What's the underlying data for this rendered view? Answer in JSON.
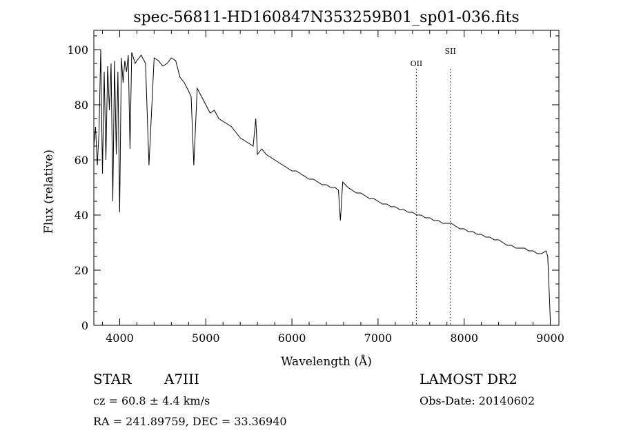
{
  "chart_data": {
    "type": "line",
    "title": "spec-56811-HD160847N353259B01_sp01-036.fits",
    "xlabel": "Wavelength (Å)",
    "ylabel": "Flux (relative)",
    "xlim": [
      3700,
      9100
    ],
    "ylim": [
      0,
      107
    ],
    "x_ticks": [
      4000,
      5000,
      6000,
      7000,
      8000,
      9000
    ],
    "y_ticks": [
      0,
      20,
      40,
      60,
      80,
      100
    ],
    "grid": false,
    "series": [
      {
        "x": [
          3700,
          3720,
          3740,
          3760,
          3780,
          3800,
          3820,
          3840,
          3860,
          3880,
          3900,
          3920,
          3940,
          3960,
          3980,
          4000,
          4020,
          4040,
          4060,
          4080,
          4100,
          4120,
          4140,
          4160,
          4180,
          4200,
          4250,
          4300,
          4340,
          4400,
          4450,
          4500,
          4550,
          4600,
          4650,
          4700,
          4750,
          4800,
          4830,
          4861,
          4900,
          4950,
          5000,
          5050,
          5100,
          5150,
          5200,
          5250,
          5300,
          5350,
          5400,
          5450,
          5500,
          5550,
          5580,
          5600,
          5650,
          5700,
          5750,
          5800,
          5850,
          5900,
          5950,
          6000,
          6050,
          6100,
          6150,
          6200,
          6250,
          6300,
          6350,
          6400,
          6450,
          6500,
          6540,
          6563,
          6590,
          6620,
          6650,
          6700,
          6750,
          6800,
          6850,
          6900,
          6950,
          7000,
          7050,
          7100,
          7150,
          7200,
          7250,
          7300,
          7350,
          7400,
          7450,
          7500,
          7550,
          7600,
          7650,
          7700,
          7750,
          7800,
          7850,
          7900,
          7950,
          8000,
          8050,
          8100,
          8150,
          8200,
          8250,
          8300,
          8350,
          8400,
          8450,
          8500,
          8550,
          8600,
          8650,
          8700,
          8750,
          8800,
          8850,
          8900,
          8950,
          8970,
          8990,
          9000
        ],
        "y": [
          65,
          72,
          58,
          70,
          100,
          55,
          92,
          60,
          94,
          78,
          95,
          45,
          96,
          62,
          92,
          41,
          97,
          88,
          96,
          92,
          98,
          64,
          99,
          97,
          95,
          96,
          98,
          95,
          58,
          97,
          96,
          94,
          95,
          97,
          96,
          90,
          88,
          85,
          83,
          58,
          86,
          83,
          80,
          77,
          78,
          75,
          74,
          73,
          72,
          70,
          68,
          67,
          66,
          65,
          75,
          62,
          64,
          62,
          61,
          60,
          59,
          58,
          57,
          56,
          56,
          55,
          54,
          53,
          53,
          52,
          51,
          51,
          50,
          50,
          49,
          38,
          52,
          51,
          50,
          49,
          48,
          48,
          47,
          46,
          46,
          45,
          44,
          44,
          43,
          43,
          42,
          42,
          41,
          41,
          40,
          40,
          39,
          39,
          38,
          38,
          37,
          37,
          37,
          36,
          35,
          35,
          34,
          34,
          33,
          33,
          32,
          32,
          31,
          31,
          30,
          29,
          29,
          28,
          28,
          28,
          27,
          27,
          26,
          26,
          27,
          25,
          10,
          2
        ]
      }
    ],
    "annotations": [
      {
        "label": "OII",
        "x": 7445
      },
      {
        "label": "SII",
        "x": 7840
      }
    ]
  },
  "info": {
    "object_type": "STAR",
    "subclass": "A7III",
    "survey": "LAMOST DR2",
    "redshift": "cz = 60.8 ± 4.4 km/s",
    "obs_date": "Obs-Date: 20140602",
    "coords": "RA = 241.89759, DEC =  33.36940"
  }
}
